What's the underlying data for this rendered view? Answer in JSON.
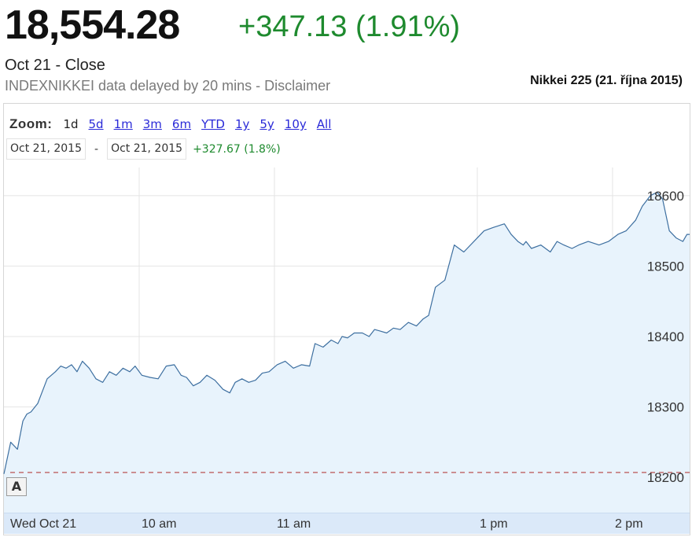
{
  "header": {
    "price": "18,554.28",
    "change": "+347.13 (1.91%)",
    "close_line": "Oct 21 - Close",
    "delayed_line": "INDEXNIKKEI data delayed by 20 mins - Disclaimer",
    "caption": "Nikkei 225 (21. října 2015)"
  },
  "colors": {
    "positive": "#1e8a2e",
    "line": "#3d6fa0",
    "fill": "#e8f3fc",
    "grid": "#e4e4e4",
    "prev_close_line": "#b44040",
    "axis_bar": "#dbe9f9"
  },
  "zoom": {
    "label": "Zoom:",
    "options": [
      "1d",
      "5d",
      "1m",
      "3m",
      "6m",
      "YTD",
      "1y",
      "5y",
      "10y",
      "All"
    ],
    "active": "1d"
  },
  "range": {
    "start": "Oct 21, 2015",
    "separator": "-",
    "end": "Oct 21, 2015",
    "change": "+327.67 (1.8%)"
  },
  "annotation_button": "A",
  "icons": [
    "annotation-a-icon"
  ],
  "chart_data": {
    "type": "area",
    "title": "",
    "xlabel": "",
    "ylabel": "",
    "x_tick_labels": [
      "Wed Oct 21",
      "10 am",
      "11 am",
      "1 pm",
      "2 pm"
    ],
    "x_tick_positions_hours": [
      9.0,
      10.0,
      11.0,
      12.5,
      13.5
    ],
    "y_tick_labels": [
      "18200",
      "18300",
      "18400",
      "18500",
      "18600"
    ],
    "y_ticks": [
      18200,
      18300,
      18400,
      18500,
      18600
    ],
    "ylim": [
      18150,
      18640
    ],
    "xlim_hours": [
      9.0,
      14.07
    ],
    "grid": true,
    "legend": "none",
    "previous_close": 18207,
    "series": [
      {
        "x_hours": [
          9.0,
          9.05,
          9.1,
          9.14,
          9.17,
          9.2,
          9.25,
          9.32,
          9.38,
          9.42,
          9.46,
          9.5,
          9.54,
          9.58,
          9.63,
          9.68,
          9.73,
          9.78,
          9.83,
          9.88,
          9.93,
          9.97,
          10.02,
          10.08,
          10.14,
          10.2,
          10.26,
          10.31,
          10.35,
          10.4,
          10.45,
          10.5,
          10.56,
          10.62,
          10.67,
          10.71,
          10.76,
          10.81,
          10.86,
          10.91,
          10.96,
          11.02,
          11.08,
          11.14,
          11.2,
          11.26,
          11.3,
          11.36,
          11.42,
          11.47,
          11.5,
          11.54,
          11.59,
          11.65,
          11.7,
          11.74,
          11.78,
          11.83,
          11.88,
          11.93,
          11.99,
          12.05,
          12.1,
          12.14,
          12.19,
          12.26,
          12.33,
          12.4,
          12.5,
          12.55,
          12.62,
          12.7,
          12.75,
          12.8,
          12.84,
          12.86,
          12.9,
          12.97,
          13.04,
          13.09,
          13.14,
          13.2,
          13.25,
          13.32,
          13.4,
          13.47,
          13.54,
          13.6,
          13.67,
          13.72,
          13.78,
          13.83,
          13.87,
          13.92,
          13.97,
          14.02,
          14.05,
          14.07
        ],
        "values": [
          18205,
          18250,
          18240,
          18280,
          18290,
          18293,
          18305,
          18340,
          18350,
          18358,
          18355,
          18360,
          18350,
          18365,
          18355,
          18340,
          18335,
          18350,
          18345,
          18355,
          18350,
          18358,
          18345,
          18342,
          18340,
          18358,
          18360,
          18345,
          18342,
          18330,
          18335,
          18345,
          18338,
          18325,
          18320,
          18335,
          18340,
          18335,
          18338,
          18348,
          18350,
          18360,
          18365,
          18355,
          18360,
          18358,
          18390,
          18385,
          18395,
          18390,
          18400,
          18398,
          18405,
          18405,
          18400,
          18410,
          18408,
          18405,
          18412,
          18410,
          18420,
          18415,
          18425,
          18430,
          18470,
          18480,
          18530,
          18520,
          18540,
          18550,
          18555,
          18560,
          18545,
          18535,
          18530,
          18535,
          18525,
          18530,
          18520,
          18535,
          18530,
          18525,
          18530,
          18535,
          18530,
          18535,
          18545,
          18550,
          18565,
          18585,
          18600,
          18605,
          18595,
          18550,
          18540,
          18535,
          18545,
          18545
        ]
      }
    ]
  }
}
